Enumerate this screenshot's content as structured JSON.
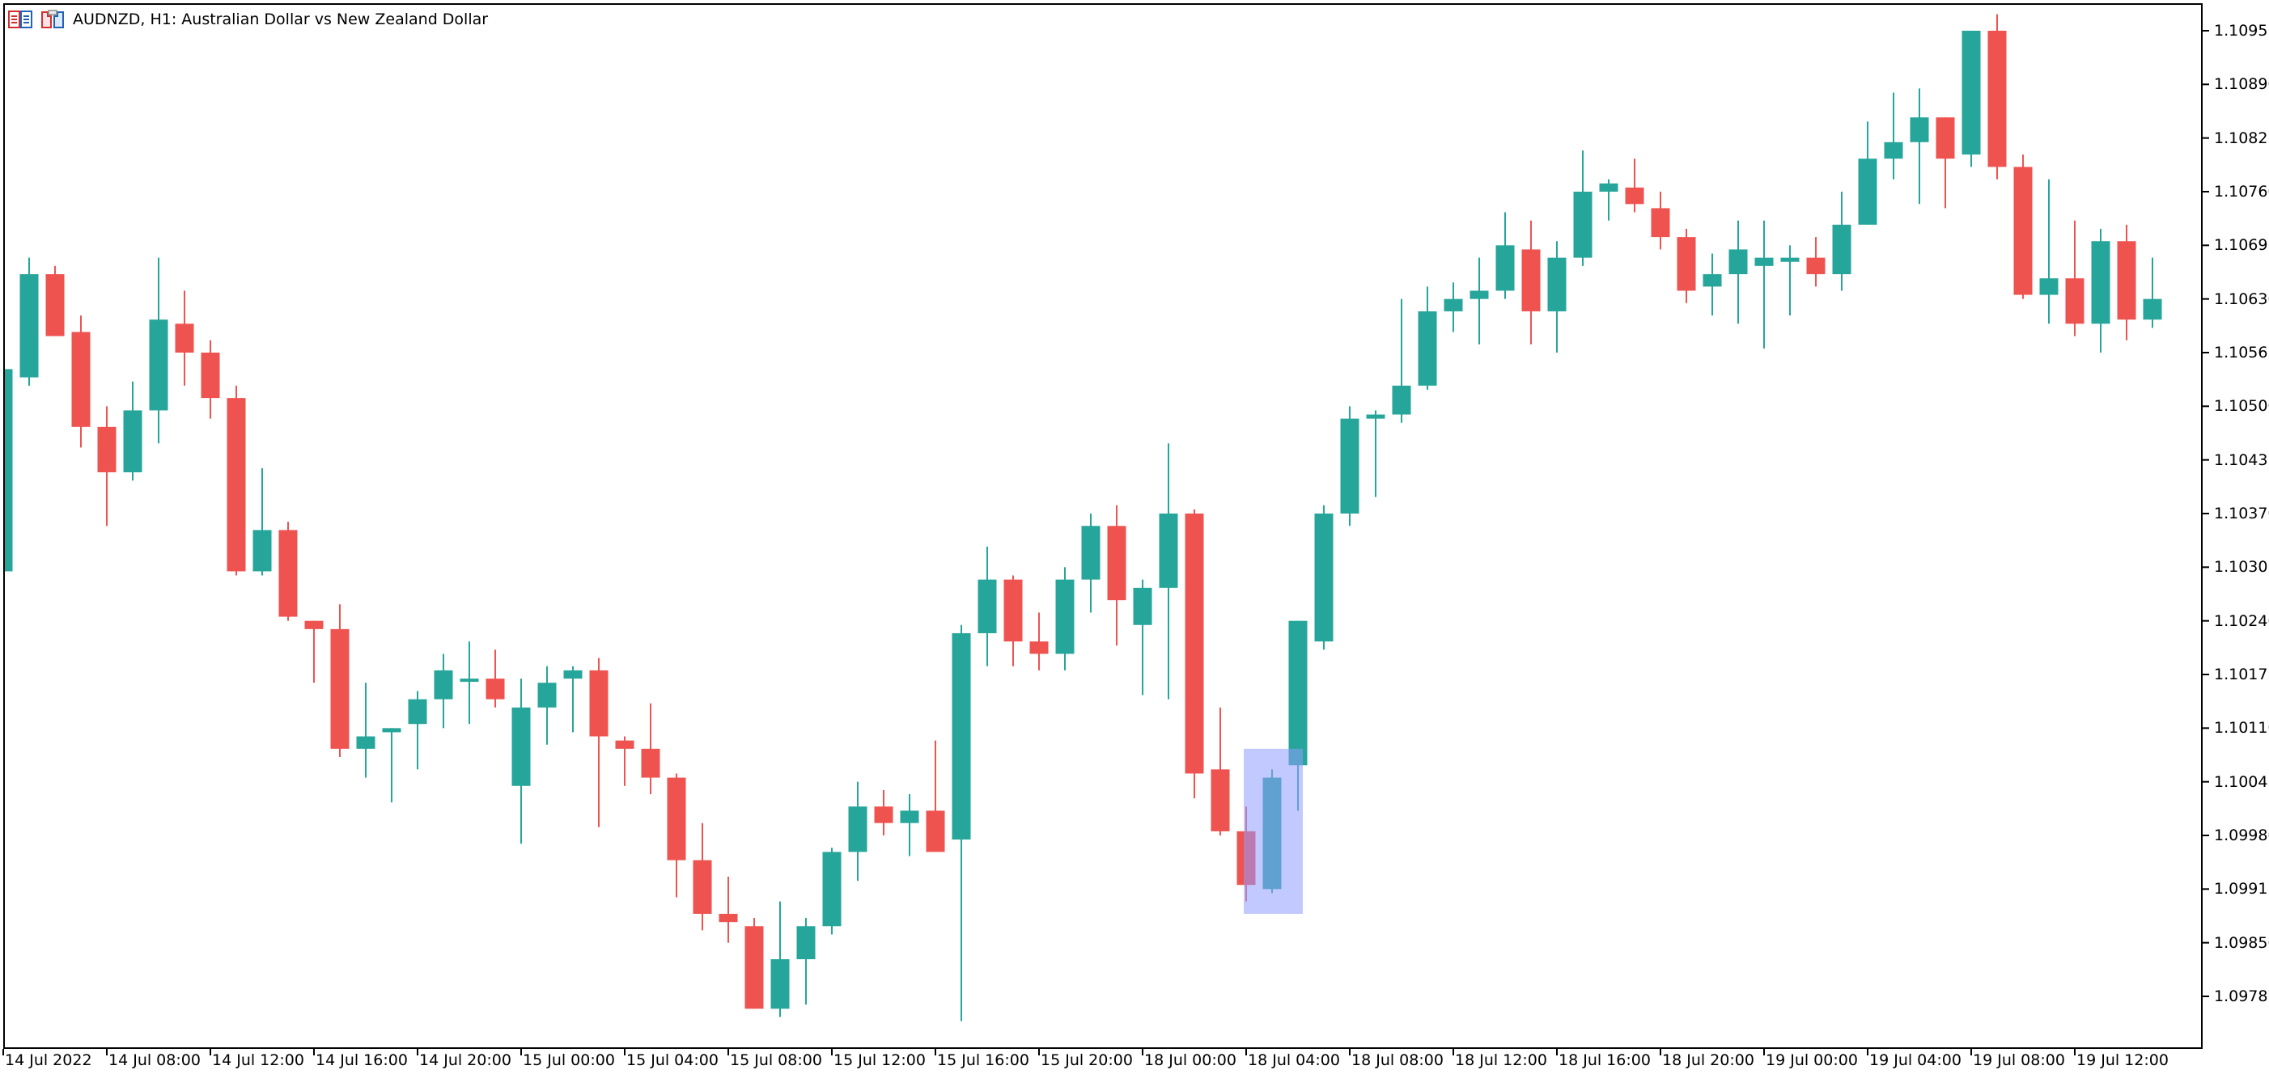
{
  "window": {
    "symbol": "AUDNZD",
    "timeframe": "H1",
    "title": "AUDNZD, H1:  Australian Dollar vs New Zealand Dollar"
  },
  "colors": {
    "bull": "#26a69a",
    "bear": "#ef5350",
    "highlight": "#8f9cff",
    "highlight_overlap": "#1e88b8",
    "axis": "#000000",
    "background": "#ffffff"
  },
  "icons": [
    "chart-list-icon",
    "chart-window-icon"
  ],
  "highlight_rect": {
    "x_start_candle": 53,
    "x_end_candle": 55,
    "price_top": 1.10085,
    "price_bottom": 1.09885
  },
  "chart_data": {
    "type": "candlestick",
    "title": "AUDNZD, H1:  Australian Dollar vs New Zealand Dollar",
    "xlabel": "",
    "ylabel": "",
    "ylim": [
      1.0974,
      1.1099
    ],
    "y_ticks": [
      "1.10955",
      "1.10890",
      "1.10825",
      "1.10760",
      "1.10695",
      "1.10630",
      "1.10565",
      "1.10500",
      "1.10435",
      "1.10370",
      "1.10305",
      "1.10240",
      "1.10175",
      "1.10110",
      "1.10045",
      "1.09980",
      "1.09915",
      "1.09850",
      "1.09785"
    ],
    "x_ticks": [
      "14 Jul 2022",
      "14 Jul 08:00",
      "14 Jul 12:00",
      "14 Jul 16:00",
      "14 Jul 20:00",
      "15 Jul 00:00",
      "15 Jul 04:00",
      "15 Jul 08:00",
      "15 Jul 12:00",
      "15 Jul 16:00",
      "15 Jul 20:00",
      "18 Jul 00:00",
      "18 Jul 04:00",
      "18 Jul 08:00",
      "18 Jul 12:00",
      "18 Jul 16:00",
      "18 Jul 20:00",
      "19 Jul 00:00",
      "19 Jul 04:00",
      "19 Jul 08:00",
      "19 Jul 12:00"
    ],
    "grid": false,
    "legend": "none",
    "candles": [
      {
        "o": 1.103,
        "h": 1.10545,
        "l": 1.103,
        "c": 1.10545
      },
      {
        "o": 1.10535,
        "h": 1.1068,
        "l": 1.10525,
        "c": 1.1066
      },
      {
        "o": 1.1066,
        "h": 1.1067,
        "l": 1.10585,
        "c": 1.10585
      },
      {
        "o": 1.1059,
        "h": 1.1061,
        "l": 1.1045,
        "c": 1.10475
      },
      {
        "o": 1.10475,
        "h": 1.105,
        "l": 1.10355,
        "c": 1.1042
      },
      {
        "o": 1.1042,
        "h": 1.1053,
        "l": 1.1041,
        "c": 1.10495
      },
      {
        "o": 1.10495,
        "h": 1.1068,
        "l": 1.10455,
        "c": 1.10605
      },
      {
        "o": 1.106,
        "h": 1.1064,
        "l": 1.10525,
        "c": 1.10565
      },
      {
        "o": 1.10565,
        "h": 1.1058,
        "l": 1.10485,
        "c": 1.1051
      },
      {
        "o": 1.1051,
        "h": 1.10525,
        "l": 1.10295,
        "c": 1.103
      },
      {
        "o": 1.103,
        "h": 1.10425,
        "l": 1.10295,
        "c": 1.1035
      },
      {
        "o": 1.1035,
        "h": 1.1036,
        "l": 1.1024,
        "c": 1.10245
      },
      {
        "o": 1.1024,
        "h": 1.1024,
        "l": 1.10165,
        "c": 1.1023
      },
      {
        "o": 1.1023,
        "h": 1.1026,
        "l": 1.10075,
        "c": 1.10085
      },
      {
        "o": 1.10085,
        "h": 1.10165,
        "l": 1.1005,
        "c": 1.101
      },
      {
        "o": 1.10105,
        "h": 1.1011,
        "l": 1.1002,
        "c": 1.1011
      },
      {
        "o": 1.10115,
        "h": 1.10155,
        "l": 1.1006,
        "c": 1.10145
      },
      {
        "o": 1.10145,
        "h": 1.102,
        "l": 1.1011,
        "c": 1.1018
      },
      {
        "o": 1.1017,
        "h": 1.10215,
        "l": 1.10115,
        "c": 1.1017
      },
      {
        "o": 1.1017,
        "h": 1.10205,
        "l": 1.10135,
        "c": 1.10145
      },
      {
        "o": 1.1004,
        "h": 1.1017,
        "l": 1.0997,
        "c": 1.10135
      },
      {
        "o": 1.10135,
        "h": 1.10185,
        "l": 1.1009,
        "c": 1.10165
      },
      {
        "o": 1.1017,
        "h": 1.10185,
        "l": 1.10105,
        "c": 1.1018
      },
      {
        "o": 1.1018,
        "h": 1.10195,
        "l": 1.0999,
        "c": 1.101
      },
      {
        "o": 1.10095,
        "h": 1.101,
        "l": 1.1004,
        "c": 1.10085
      },
      {
        "o": 1.10085,
        "h": 1.1014,
        "l": 1.1003,
        "c": 1.1005
      },
      {
        "o": 1.1005,
        "h": 1.10055,
        "l": 1.09905,
        "c": 1.0995
      },
      {
        "o": 1.0995,
        "h": 1.09995,
        "l": 1.09865,
        "c": 1.09885
      },
      {
        "o": 1.09885,
        "h": 1.0993,
        "l": 1.0985,
        "c": 1.09875
      },
      {
        "o": 1.0987,
        "h": 1.0988,
        "l": 1.09775,
        "c": 1.0977
      },
      {
        "o": 1.0977,
        "h": 1.099,
        "l": 1.0976,
        "c": 1.0983
      },
      {
        "o": 1.0983,
        "h": 1.0988,
        "l": 1.09775,
        "c": 1.0987
      },
      {
        "o": 1.0987,
        "h": 1.09965,
        "l": 1.0986,
        "c": 1.0996
      },
      {
        "o": 1.0996,
        "h": 1.10045,
        "l": 1.09925,
        "c": 1.10015
      },
      {
        "o": 1.10015,
        "h": 1.10035,
        "l": 1.0998,
        "c": 1.09995
      },
      {
        "o": 1.09995,
        "h": 1.1003,
        "l": 1.09955,
        "c": 1.1001
      },
      {
        "o": 1.1001,
        "h": 1.10095,
        "l": 1.0996,
        "c": 1.0996
      },
      {
        "o": 1.09975,
        "h": 1.10235,
        "l": 1.09755,
        "c": 1.10225
      },
      {
        "o": 1.10225,
        "h": 1.1033,
        "l": 1.10185,
        "c": 1.1029
      },
      {
        "o": 1.1029,
        "h": 1.10295,
        "l": 1.10185,
        "c": 1.10215
      },
      {
        "o": 1.10215,
        "h": 1.1025,
        "l": 1.1018,
        "c": 1.102
      },
      {
        "o": 1.102,
        "h": 1.10305,
        "l": 1.1018,
        "c": 1.1029
      },
      {
        "o": 1.1029,
        "h": 1.1037,
        "l": 1.1025,
        "c": 1.10355
      },
      {
        "o": 1.10355,
        "h": 1.1038,
        "l": 1.1021,
        "c": 1.10265
      },
      {
        "o": 1.10235,
        "h": 1.1029,
        "l": 1.1015,
        "c": 1.1028
      },
      {
        "o": 1.1028,
        "h": 1.10455,
        "l": 1.10145,
        "c": 1.1037
      },
      {
        "o": 1.1037,
        "h": 1.10375,
        "l": 1.10025,
        "c": 1.10055
      },
      {
        "o": 1.1006,
        "h": 1.10135,
        "l": 1.0998,
        "c": 1.09985
      },
      {
        "o": 1.09985,
        "h": 1.10015,
        "l": 1.099,
        "c": 1.0992
      },
      {
        "o": 1.09915,
        "h": 1.1006,
        "l": 1.0991,
        "c": 1.1005
      },
      {
        "o": 1.10065,
        "h": 1.1024,
        "l": 1.1001,
        "c": 1.1024
      },
      {
        "o": 1.10215,
        "h": 1.1038,
        "l": 1.10205,
        "c": 1.1037
      },
      {
        "o": 1.1037,
        "h": 1.105,
        "l": 1.10355,
        "c": 1.10485
      },
      {
        "o": 1.10485,
        "h": 1.10495,
        "l": 1.1039,
        "c": 1.1049
      },
      {
        "o": 1.1049,
        "h": 1.1063,
        "l": 1.1048,
        "c": 1.10525
      },
      {
        "o": 1.10525,
        "h": 1.10645,
        "l": 1.1052,
        "c": 1.10615
      },
      {
        "o": 1.10615,
        "h": 1.1065,
        "l": 1.1059,
        "c": 1.1063
      },
      {
        "o": 1.1063,
        "h": 1.1068,
        "l": 1.10575,
        "c": 1.1064
      },
      {
        "o": 1.1064,
        "h": 1.10735,
        "l": 1.1063,
        "c": 1.10695
      },
      {
        "o": 1.1069,
        "h": 1.10725,
        "l": 1.10575,
        "c": 1.10615
      },
      {
        "o": 1.10615,
        "h": 1.107,
        "l": 1.10565,
        "c": 1.1068
      },
      {
        "o": 1.1068,
        "h": 1.1081,
        "l": 1.1067,
        "c": 1.1076
      },
      {
        "o": 1.1076,
        "h": 1.10775,
        "l": 1.10725,
        "c": 1.1077
      },
      {
        "o": 1.10765,
        "h": 1.108,
        "l": 1.10735,
        "c": 1.10745
      },
      {
        "o": 1.1074,
        "h": 1.1076,
        "l": 1.1069,
        "c": 1.10705
      },
      {
        "o": 1.10705,
        "h": 1.10715,
        "l": 1.10625,
        "c": 1.1064
      },
      {
        "o": 1.10645,
        "h": 1.10685,
        "l": 1.1061,
        "c": 1.1066
      },
      {
        "o": 1.1066,
        "h": 1.10725,
        "l": 1.106,
        "c": 1.1069
      },
      {
        "o": 1.1067,
        "h": 1.10725,
        "l": 1.1057,
        "c": 1.1068
      },
      {
        "o": 1.10675,
        "h": 1.10695,
        "l": 1.1061,
        "c": 1.1068
      },
      {
        "o": 1.1068,
        "h": 1.10705,
        "l": 1.10645,
        "c": 1.1066
      },
      {
        "o": 1.1066,
        "h": 1.1076,
        "l": 1.1064,
        "c": 1.1072
      },
      {
        "o": 1.1072,
        "h": 1.10845,
        "l": 1.1072,
        "c": 1.108
      },
      {
        "o": 1.108,
        "h": 1.1088,
        "l": 1.10775,
        "c": 1.1082
      },
      {
        "o": 1.1082,
        "h": 1.10885,
        "l": 1.10745,
        "c": 1.1085
      },
      {
        "o": 1.1085,
        "h": 1.1083,
        "l": 1.1074,
        "c": 1.108
      },
      {
        "o": 1.10805,
        "h": 1.10955,
        "l": 1.1079,
        "c": 1.10955
      },
      {
        "o": 1.10955,
        "h": 1.10975,
        "l": 1.10775,
        "c": 1.1079
      },
      {
        "o": 1.1079,
        "h": 1.10805,
        "l": 1.1063,
        "c": 1.10635
      },
      {
        "o": 1.10635,
        "h": 1.10775,
        "l": 1.106,
        "c": 1.10655
      },
      {
        "o": 1.10655,
        "h": 1.10725,
        "l": 1.10585,
        "c": 1.106
      },
      {
        "o": 1.106,
        "h": 1.10715,
        "l": 1.10565,
        "c": 1.107
      },
      {
        "o": 1.107,
        "h": 1.1072,
        "l": 1.1058,
        "c": 1.10605
      },
      {
        "o": 1.10605,
        "h": 1.1068,
        "l": 1.10595,
        "c": 1.1063
      }
    ]
  }
}
